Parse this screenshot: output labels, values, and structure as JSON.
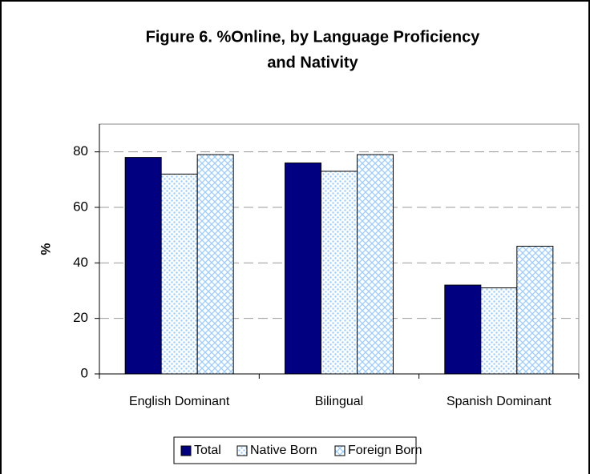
{
  "chart_data": {
    "type": "bar",
    "title": [
      "Figure 6. %Online, by Language Proficiency",
      "and Nativity"
    ],
    "y_label": "%",
    "categories": [
      "English Dominant",
      "Bilingual",
      "Spanish Dominant"
    ],
    "series": [
      {
        "name": "Total",
        "color": "#000080",
        "pattern": "solid",
        "values": [
          78,
          76,
          32
        ]
      },
      {
        "name": "Native Born",
        "color": "#99ccff",
        "pattern": "dots",
        "values": [
          72,
          73,
          31
        ]
      },
      {
        "name": "Foreign Born",
        "color": "#99ccff",
        "pattern": "crosshatch",
        "values": [
          79,
          79,
          46
        ]
      }
    ],
    "ylim": [
      0,
      90
    ],
    "yticks": [
      0,
      20,
      40,
      60,
      80
    ],
    "grid": true,
    "legend": "bottom"
  }
}
